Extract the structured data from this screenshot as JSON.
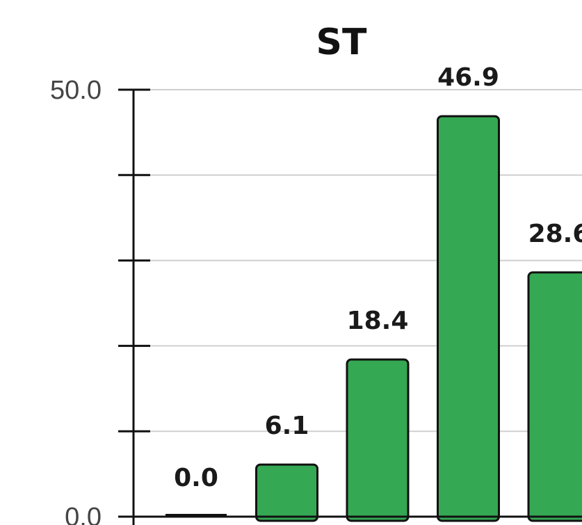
{
  "chart_data": {
    "type": "bar",
    "title": "ST",
    "xlabel": "",
    "ylabel": "",
    "values": [
      0.0,
      6.1,
      18.4,
      46.9,
      28.6
    ],
    "data_labels": [
      "0.0",
      "6.1",
      "18.4",
      "46.9",
      "28.6"
    ],
    "ylim": [
      0,
      50
    ],
    "y_tick_values": [
      0,
      10,
      20,
      30,
      40,
      50
    ],
    "y_tick_labels": [
      "0.0",
      "",
      "",
      "",
      "",
      "50.0"
    ],
    "grid": true,
    "bar_color": "#34a853",
    "edge_color": "#111111"
  }
}
